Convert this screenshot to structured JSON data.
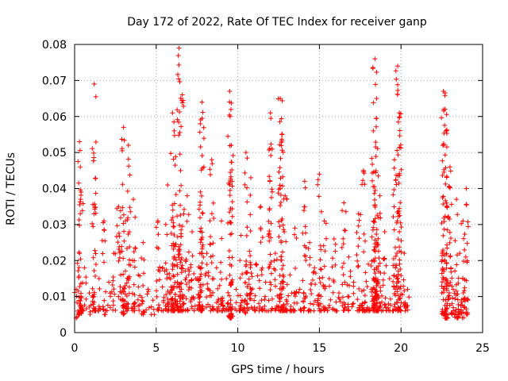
{
  "chart_data": {
    "type": "scatter",
    "title": "Day 172 of 2022, Rate Of TEC Index for receiver ganp",
    "xlabel": "GPS time / hours",
    "ylabel": "ROTI / TECUs",
    "xlim": [
      0,
      25
    ],
    "ylim": [
      0,
      0.08
    ],
    "x_ticks": [
      "0",
      "5",
      "10",
      "15",
      "20",
      "25"
    ],
    "y_ticks": [
      "0",
      "0.01",
      "0.02",
      "0.03",
      "0.04",
      "0.05",
      "0.06",
      "0.07",
      "0.08"
    ],
    "grid": true,
    "marker": "+",
    "color": "#ff0000",
    "series": [
      {
        "x": [
          0.1,
          0.3,
          0.4,
          0.6,
          0.9,
          1.2,
          1.5,
          1.8,
          2.1,
          2.4,
          2.7,
          3.0,
          3.1,
          3.3,
          3.6,
          3.9,
          4.2,
          4.5,
          4.8,
          5.1,
          5.4,
          5.7,
          6.0,
          6.1,
          6.3,
          6.4,
          6.6,
          6.9,
          7.2,
          7.5,
          7.7,
          7.8,
          8.1,
          8.4,
          8.7,
          9.0,
          9.3,
          9.5,
          9.6,
          9.9,
          10.2,
          10.5,
          10.8,
          11.1,
          11.4,
          11.7,
          12.0,
          12.3,
          12.6,
          12.7,
          12.9,
          13.2,
          13.5,
          13.8,
          14.1,
          14.4,
          14.7,
          15.0,
          15.3,
          15.6,
          15.9,
          16.2,
          16.5,
          16.8,
          17.1,
          17.4,
          17.7,
          18.0,
          18.3,
          18.4,
          18.5,
          18.7,
          19.0,
          19.3,
          19.6,
          19.8,
          19.9,
          20.2,
          20.4,
          22.6,
          22.7,
          22.8,
          23.0,
          23.2,
          23.4,
          23.6,
          23.8,
          24.0
        ],
        "y": [
          0.012,
          0.053,
          0.039,
          0.018,
          0.011,
          0.069,
          0.015,
          0.031,
          0.014,
          0.022,
          0.035,
          0.057,
          0.013,
          0.052,
          0.037,
          0.016,
          0.025,
          0.012,
          0.009,
          0.031,
          0.018,
          0.041,
          0.061,
          0.056,
          0.014,
          0.079,
          0.066,
          0.038,
          0.028,
          0.015,
          0.058,
          0.064,
          0.022,
          0.048,
          0.018,
          0.031,
          0.015,
          0.067,
          0.052,
          0.012,
          0.027,
          0.05,
          0.043,
          0.019,
          0.035,
          0.014,
          0.061,
          0.022,
          0.065,
          0.055,
          0.038,
          0.016,
          0.029,
          0.012,
          0.042,
          0.025,
          0.018,
          0.044,
          0.031,
          0.015,
          0.026,
          0.011,
          0.036,
          0.021,
          0.014,
          0.033,
          0.045,
          0.019,
          0.056,
          0.076,
          0.065,
          0.038,
          0.028,
          0.015,
          0.048,
          0.074,
          0.061,
          0.022,
          0.012,
          0.067,
          0.062,
          0.056,
          0.046,
          0.012,
          0.037,
          0.022,
          0.031,
          0.04
        ],
        "y_min": [
          0.004,
          0.005,
          0.006,
          0.006,
          0.005,
          0.006,
          0.006,
          0.005,
          0.006,
          0.006,
          0.006,
          0.005,
          0.005,
          0.006,
          0.006,
          0.006,
          0.005,
          0.006,
          0.005,
          0.006,
          0.006,
          0.006,
          0.006,
          0.006,
          0.006,
          0.006,
          0.006,
          0.006,
          0.006,
          0.006,
          0.006,
          0.006,
          0.006,
          0.006,
          0.006,
          0.006,
          0.006,
          0.004,
          0.004,
          0.006,
          0.006,
          0.005,
          0.006,
          0.006,
          0.006,
          0.006,
          0.006,
          0.006,
          0.006,
          0.006,
          0.006,
          0.006,
          0.006,
          0.006,
          0.006,
          0.006,
          0.006,
          0.006,
          0.006,
          0.006,
          0.006,
          0.006,
          0.006,
          0.006,
          0.006,
          0.006,
          0.006,
          0.006,
          0.006,
          0.006,
          0.006,
          0.006,
          0.006,
          0.006,
          0.006,
          0.006,
          0.006,
          0.006,
          0.006,
          0.005,
          0.005,
          0.004,
          0.005,
          0.006,
          0.004,
          0.005,
          0.004,
          0.005
        ]
      }
    ]
  }
}
